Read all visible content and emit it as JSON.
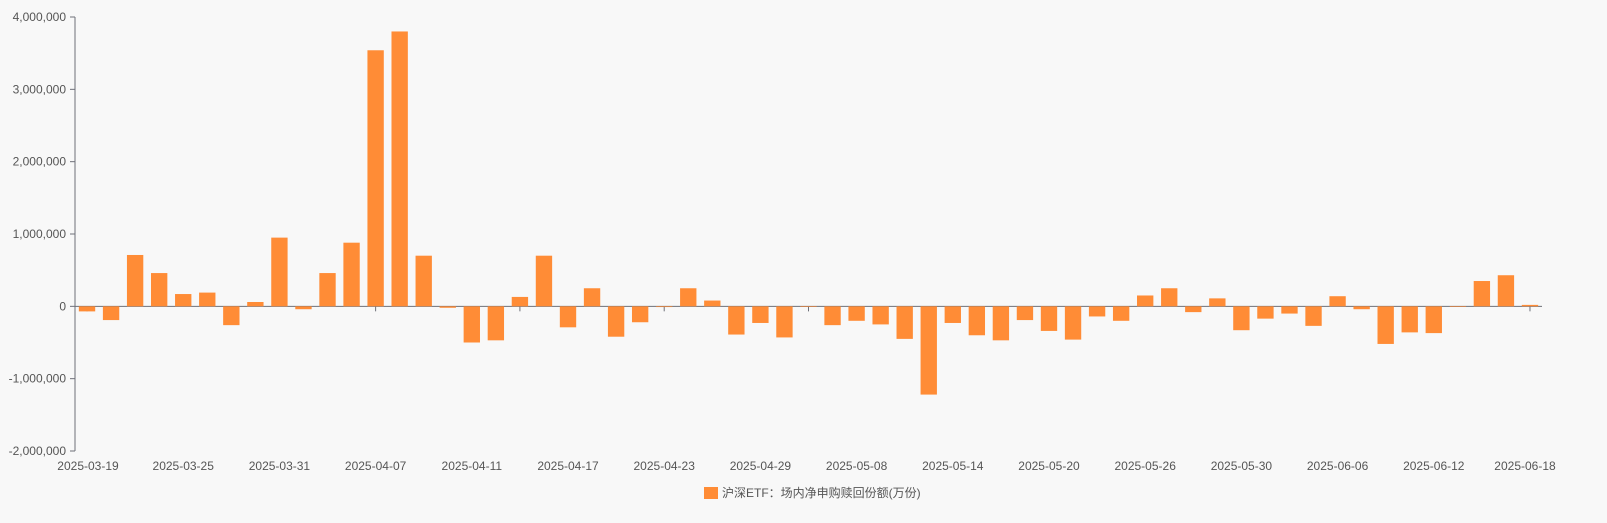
{
  "chart_data": {
    "type": "bar",
    "title": "",
    "xlabel": "",
    "ylabel": "",
    "ylim": [
      -2000000,
      4000000
    ],
    "yticks": [
      -2000000,
      -1000000,
      0,
      1000000,
      2000000,
      3000000,
      4000000
    ],
    "ytick_labels": [
      "-2,000,000",
      "-1,000,000",
      "0",
      "1,000,000",
      "2,000,000",
      "3,000,000",
      "4,000,000"
    ],
    "xtick_labels": [
      "2025-03-19",
      "2025-03-25",
      "2025-03-31",
      "2025-04-07",
      "2025-04-11",
      "2025-04-17",
      "2025-04-23",
      "2025-04-29",
      "2025-05-08",
      "2025-05-14",
      "2025-05-20",
      "2025-05-26",
      "2025-05-30",
      "2025-06-06",
      "2025-06-12",
      "2025-06-18"
    ],
    "xtick_label_indices": [
      0,
      4,
      8,
      12,
      16,
      20,
      24,
      28,
      32,
      36,
      40,
      44,
      48,
      52,
      56,
      60
    ],
    "legend_position": "bottom-center",
    "grid": false,
    "series": [
      {
        "name": "沪深ETF：场内净申购赎回份额(万份)",
        "color": "#ff8c36",
        "values": [
          -70000,
          -190000,
          710000,
          460000,
          170000,
          190000,
          -260000,
          60000,
          950000,
          -40000,
          460000,
          880000,
          3540000,
          3800000,
          700000,
          -20000,
          -500000,
          -470000,
          130000,
          700000,
          -290000,
          250000,
          -420000,
          -220000,
          -10000,
          250000,
          80000,
          -390000,
          -230000,
          -430000,
          0,
          -260000,
          -200000,
          -250000,
          -450000,
          -1220000,
          -230000,
          -400000,
          -470000,
          -190000,
          -340000,
          -460000,
          -140000,
          -200000,
          150000,
          250000,
          -80000,
          110000,
          -330000,
          -170000,
          -100000,
          -270000,
          140000,
          -40000,
          -520000,
          -360000,
          -370000,
          0,
          350000,
          430000,
          20000
        ]
      }
    ]
  }
}
